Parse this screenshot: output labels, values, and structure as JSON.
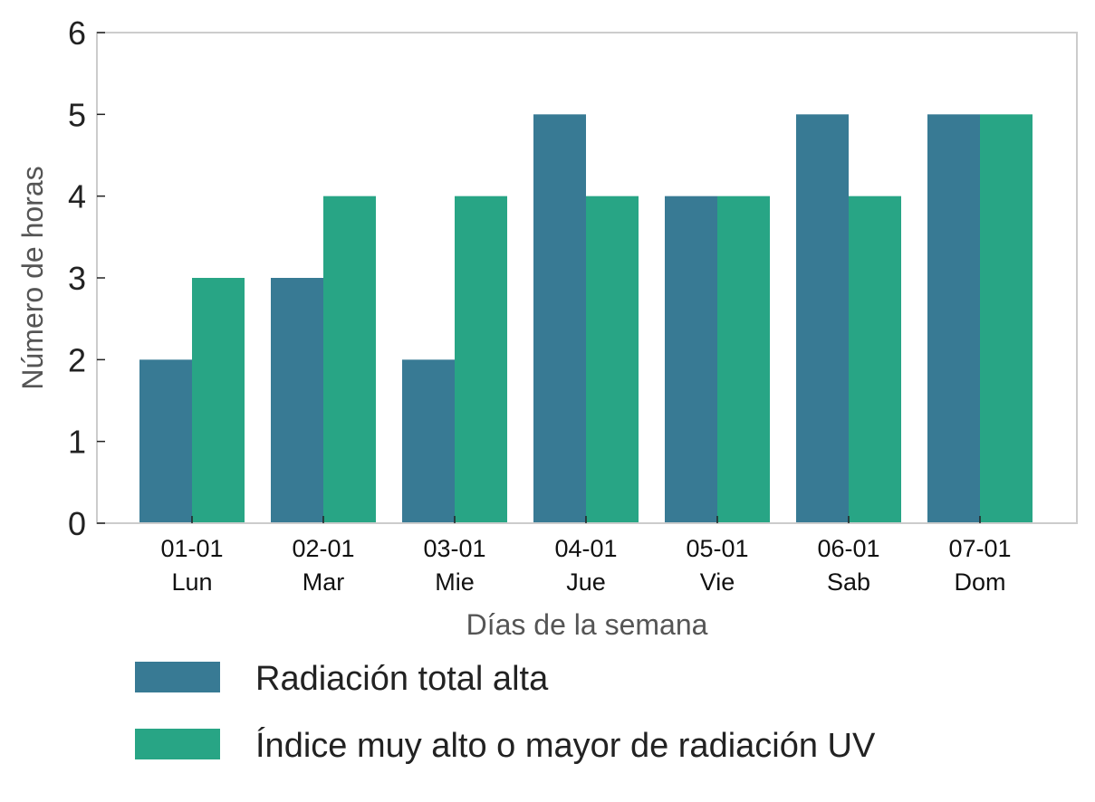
{
  "chart_data": {
    "type": "bar",
    "categories": [
      [
        "01-01",
        "Lun"
      ],
      [
        "02-01",
        "Mar"
      ],
      [
        "03-01",
        "Mie"
      ],
      [
        "04-01",
        "Jue"
      ],
      [
        "05-01",
        "Vie"
      ],
      [
        "06-01",
        "Sab"
      ],
      [
        "07-01",
        "Dom"
      ]
    ],
    "series": [
      {
        "name": "Radiación total alta",
        "color": "#387a94",
        "values": [
          2,
          3,
          2,
          5,
          4,
          5,
          5
        ]
      },
      {
        "name": "Índice muy alto o mayor de radiación UV",
        "color": "#28a585",
        "values": [
          3,
          4,
          4,
          4,
          4,
          4,
          5
        ]
      }
    ],
    "xlabel": "Días de la semana",
    "ylabel": "Número de horas",
    "ylim": [
      0,
      6
    ],
    "yticks": [
      0,
      1,
      2,
      3,
      4,
      5,
      6
    ],
    "grid": false,
    "legend_position": "bottom"
  }
}
